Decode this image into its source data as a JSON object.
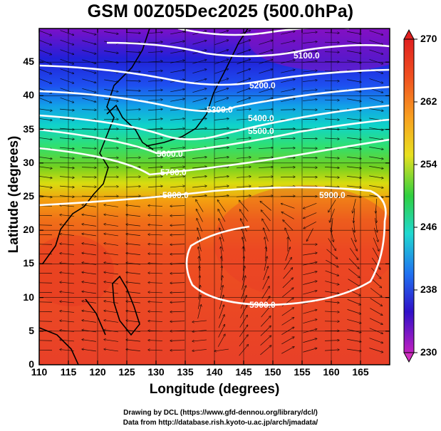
{
  "title": "GSM 00Z05Dec2025 (500.0hPa)",
  "x_axis": {
    "label": "Longitude (degrees)",
    "ticks": [
      "110",
      "115",
      "120",
      "125",
      "130",
      "135",
      "140",
      "145",
      "150",
      "155",
      "160",
      "165"
    ]
  },
  "y_axis": {
    "label": "Latitude  (degrees)",
    "ticks": [
      "0",
      "5",
      "10",
      "15",
      "20",
      "25",
      "30",
      "35",
      "40",
      "45"
    ]
  },
  "colorbar": {
    "ticks": [
      "230",
      "238",
      "246",
      "254",
      "262",
      "270"
    ]
  },
  "contour_labels": [
    "5100.0",
    "5200.0",
    "5300.0",
    "5400.0",
    "5500.0",
    "5600.0",
    "5700.0",
    "5800.0",
    "5900.0",
    "5900.0"
  ],
  "credits": {
    "line1": "Drawing by DCL (https://www.gfd-dennou.org/library/dcl/)",
    "line2": "Data from http://database.rish.kyoto-u.ac.jp/arch/jmadata/"
  },
  "chart_data": {
    "type": "heatmap",
    "title": "GSM 00Z05Dec2025 (500.0hPa)",
    "xlabel": "Longitude (degrees)",
    "ylabel": "Latitude  (degrees)",
    "xlim": [
      110,
      170
    ],
    "ylim": [
      0,
      50
    ],
    "colorbar_range": [
      230,
      270
    ],
    "contour_levels": [
      5100,
      5200,
      5300,
      5400,
      5500,
      5600,
      5700,
      5800,
      5900
    ],
    "contour_color": "#ffffff",
    "vector_color": "#000000"
  }
}
